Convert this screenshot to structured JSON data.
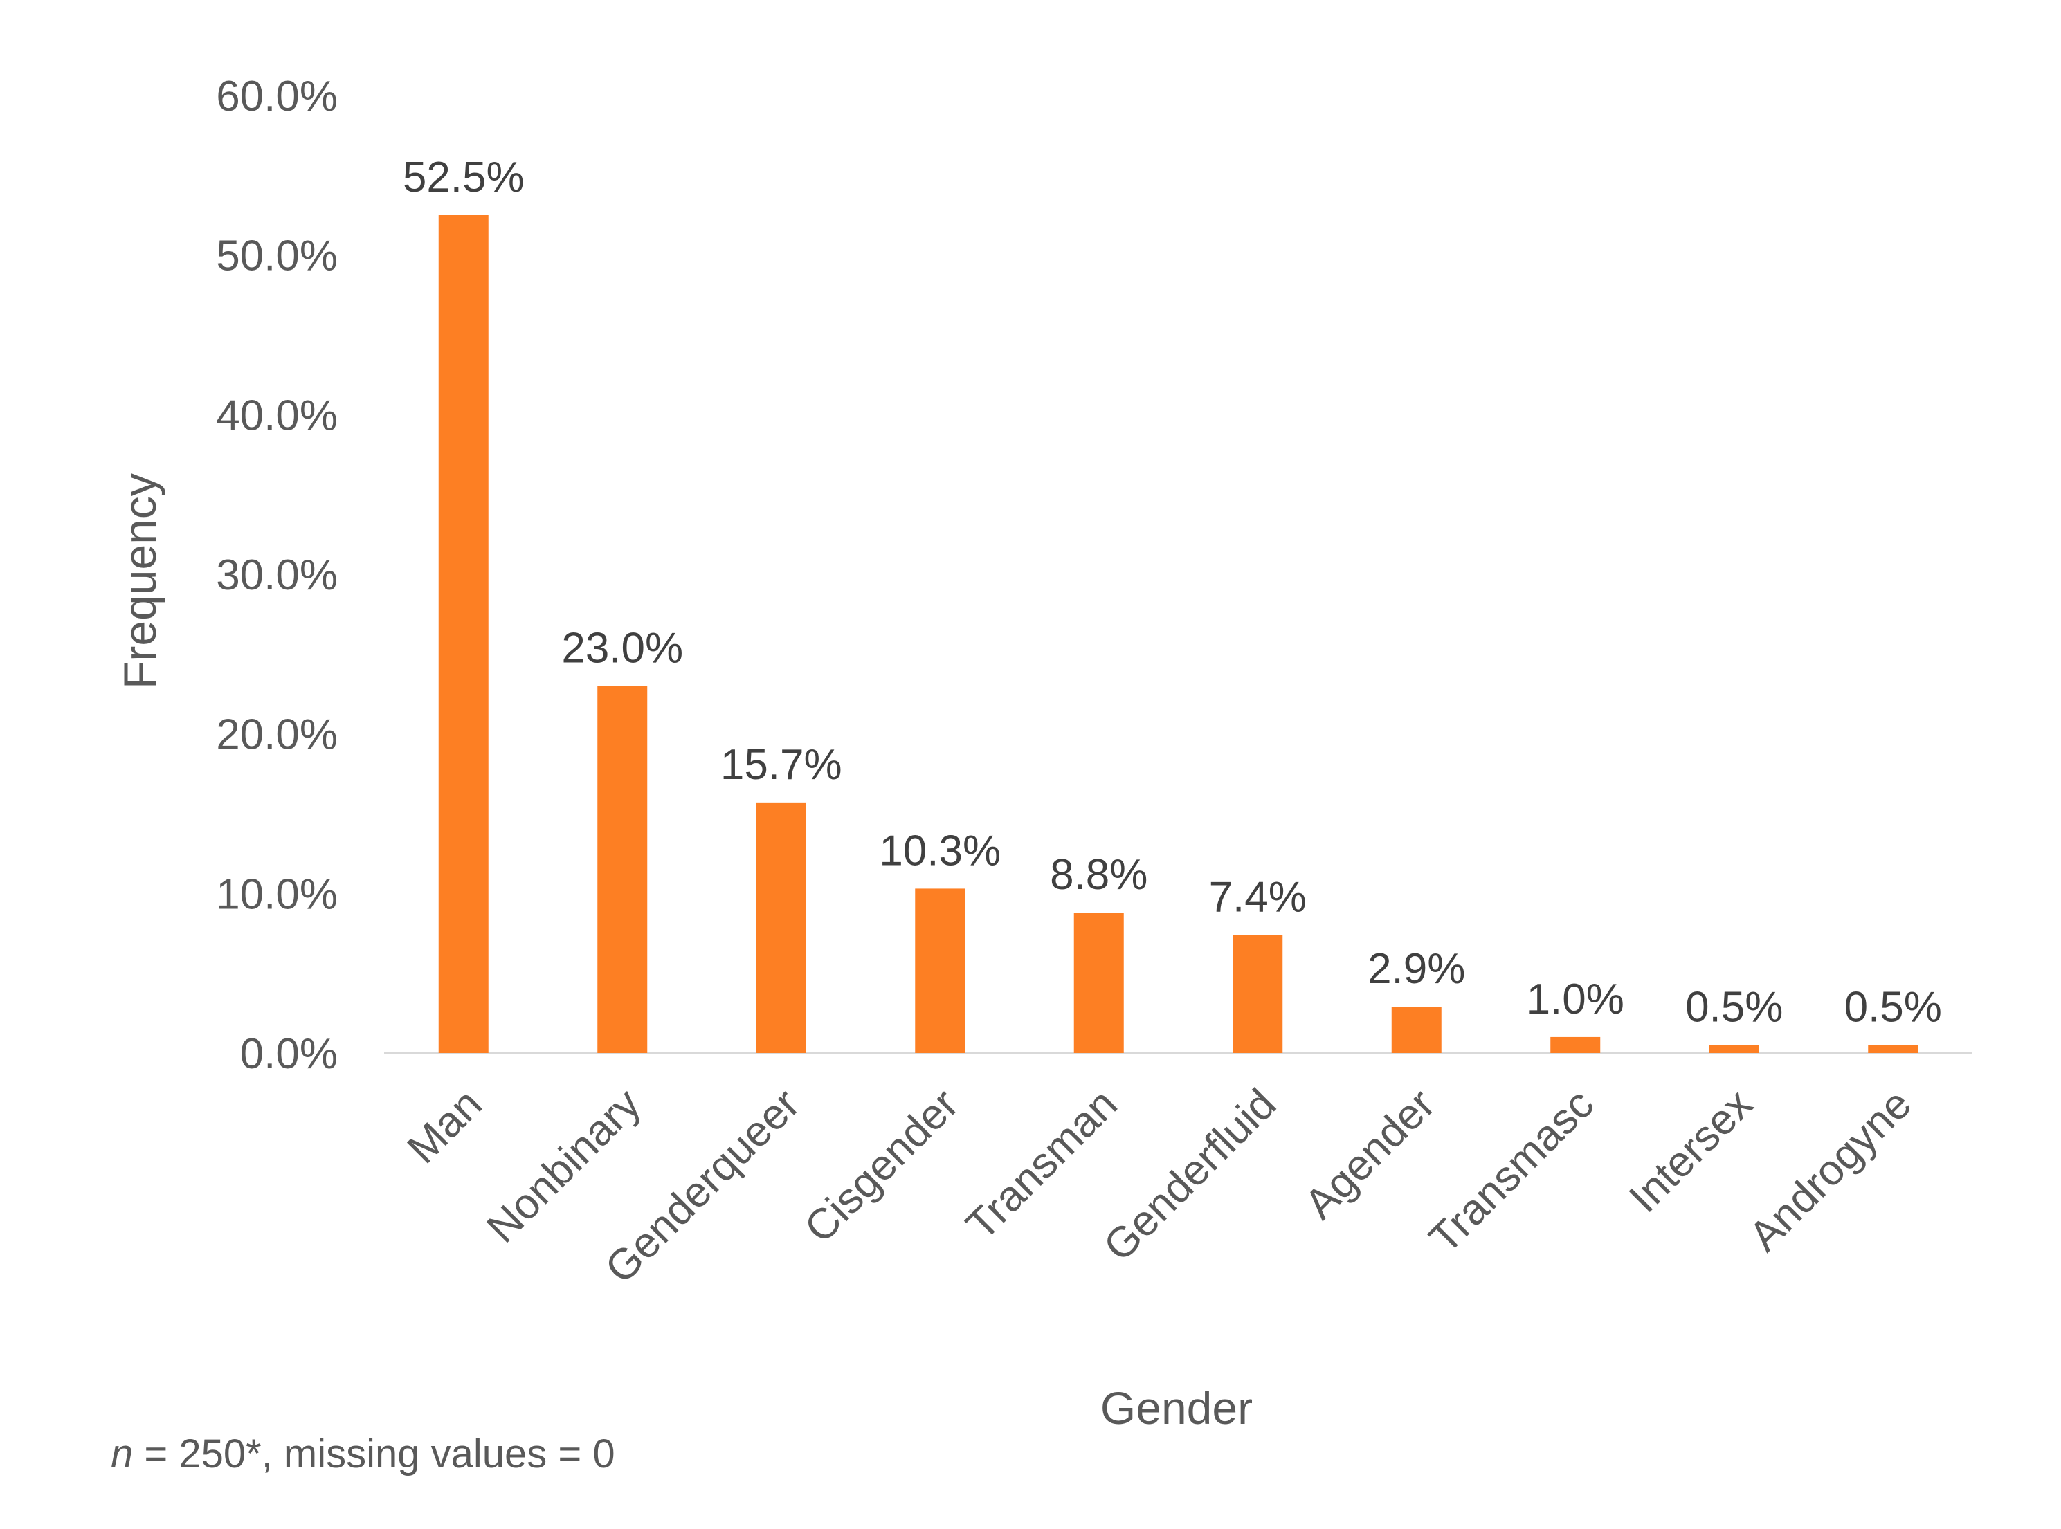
{
  "chart_data": {
    "type": "bar",
    "categories": [
      "Man",
      "Nonbinary",
      "Genderqueer",
      "Cisgender",
      "Transman",
      "Genderfluid",
      "Agender",
      "Transmasc",
      "Intersex",
      "Androgyne"
    ],
    "values": [
      52.5,
      23.0,
      15.7,
      10.3,
      8.8,
      7.4,
      2.9,
      1.0,
      0.5,
      0.5
    ],
    "data_labels": [
      "52.5%",
      "23.0%",
      "15.7%",
      "10.3%",
      "8.8%",
      "7.4%",
      "2.9%",
      "1.0%",
      "0.5%",
      "0.5%"
    ],
    "xlabel": "Gender",
    "ylabel": "Frequency",
    "ylim": [
      0,
      60
    ],
    "yticks": [
      0,
      10,
      20,
      30,
      40,
      50,
      60
    ],
    "ytick_labels": [
      "0.0%",
      "10.0%",
      "20.0%",
      "30.0%",
      "40.0%",
      "50.0%",
      "60.0%"
    ],
    "bar_color": "#fd7f23",
    "grid": false,
    "legend": "none"
  },
  "footnote": {
    "n_symbol": "n",
    "rest": " = 250*, missing values = 0"
  }
}
